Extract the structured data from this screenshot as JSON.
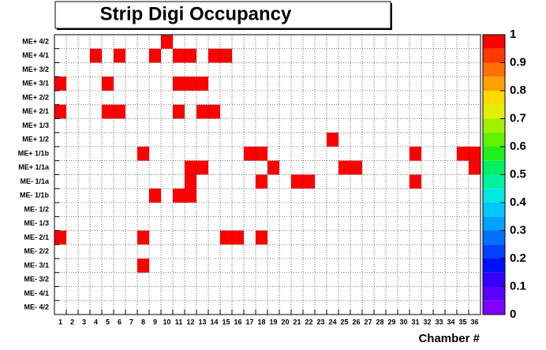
{
  "chart_data": {
    "type": "heatmap",
    "title": "Strip Digi Occupancy",
    "x_label": "Chamber #",
    "x_categories": [
      1,
      2,
      3,
      4,
      5,
      6,
      7,
      8,
      9,
      10,
      11,
      12,
      13,
      14,
      15,
      16,
      17,
      18,
      19,
      20,
      21,
      22,
      23,
      24,
      25,
      26,
      27,
      28,
      29,
      30,
      31,
      32,
      33,
      34,
      35,
      36
    ],
    "y_categories": [
      "ME+ 4/2",
      "ME+ 4/1",
      "ME+ 3/2",
      "ME+ 3/1",
      "ME+ 2/2",
      "ME+ 2/1",
      "ME+ 1/3",
      "ME+ 1/2",
      "ME+ 1/1b",
      "ME+ 1/1a",
      "ME- 1/1a",
      "ME- 1/1b",
      "ME- 1/2",
      "ME- 1/3",
      "ME- 2/1",
      "ME- 2/2",
      "ME- 3/1",
      "ME- 3/2",
      "ME- 4/1",
      "ME- 4/2"
    ],
    "values": [
      [
        0,
        0,
        0,
        0,
        0,
        0,
        0,
        0,
        0,
        1,
        0,
        0,
        0,
        0,
        0,
        0,
        0,
        0,
        0,
        0,
        0,
        0,
        0,
        0,
        0,
        0,
        0,
        0,
        0,
        0,
        0,
        0,
        0,
        0,
        0,
        0
      ],
      [
        0,
        0,
        0,
        1,
        0,
        1,
        0,
        0,
        1,
        0,
        1,
        1,
        0,
        1,
        1,
        0,
        0,
        0,
        0,
        0,
        0,
        0,
        0,
        0,
        0,
        0,
        0,
        0,
        0,
        0,
        0,
        0,
        0,
        0,
        0,
        0
      ],
      [
        0,
        0,
        0,
        0,
        0,
        0,
        0,
        0,
        0,
        0,
        0,
        0,
        0,
        0,
        0,
        0,
        0,
        0,
        0,
        0,
        0,
        0,
        0,
        0,
        0,
        0,
        0,
        0,
        0,
        0,
        0,
        0,
        0,
        0,
        0,
        0
      ],
      [
        1,
        0,
        0,
        0,
        1,
        0,
        0,
        0,
        0,
        0,
        1,
        1,
        1,
        0,
        0,
        0,
        0,
        0,
        0,
        0,
        0,
        0,
        0,
        0,
        0,
        0,
        0,
        0,
        0,
        0,
        0,
        0,
        0,
        0,
        0,
        0
      ],
      [
        0,
        0,
        0,
        0,
        0,
        0,
        0,
        0,
        0,
        0,
        0,
        0,
        0,
        0,
        0,
        0,
        0,
        0,
        0,
        0,
        0,
        0,
        0,
        0,
        0,
        0,
        0,
        0,
        0,
        0,
        0,
        0,
        0,
        0,
        0,
        0
      ],
      [
        1,
        0,
        0,
        0,
        1,
        1,
        0,
        0,
        0,
        0,
        1,
        0,
        1,
        1,
        0,
        0,
        0,
        0,
        0,
        0,
        0,
        0,
        0,
        0,
        0,
        0,
        0,
        0,
        0,
        0,
        0,
        0,
        0,
        0,
        0,
        0
      ],
      [
        0,
        0,
        0,
        0,
        0,
        0,
        0,
        0,
        0,
        0,
        0,
        0,
        0,
        0,
        0,
        0,
        0,
        0,
        0,
        0,
        0,
        0,
        0,
        0,
        0,
        0,
        0,
        0,
        0,
        0,
        0,
        0,
        0,
        0,
        0,
        0
      ],
      [
        0,
        0,
        0,
        0,
        0,
        0,
        0,
        0,
        0,
        0,
        0,
        0,
        0,
        0,
        0,
        0,
        0,
        0,
        0,
        0,
        0,
        0,
        0,
        1,
        0,
        0,
        0,
        0,
        0,
        0,
        0,
        0,
        0,
        0,
        0,
        0
      ],
      [
        0,
        0,
        0,
        0,
        0,
        0,
        0,
        1,
        0,
        0,
        0,
        0,
        0,
        0,
        0,
        0,
        1,
        1,
        0,
        0,
        0,
        0,
        0,
        0,
        0,
        0,
        0,
        0,
        0,
        0,
        1,
        0,
        0,
        0,
        1,
        1
      ],
      [
        0,
        0,
        0,
        0,
        0,
        0,
        0,
        0,
        0,
        0,
        0,
        1,
        1,
        0,
        0,
        0,
        0,
        0,
        1,
        0,
        0,
        0,
        0,
        0,
        1,
        1,
        0,
        0,
        0,
        0,
        0,
        0,
        0,
        0,
        0,
        1
      ],
      [
        0,
        0,
        0,
        0,
        0,
        0,
        0,
        0,
        0,
        0,
        0,
        1,
        0,
        0,
        0,
        0,
        0,
        1,
        0,
        0,
        1,
        1,
        0,
        0,
        0,
        0,
        0,
        0,
        0,
        0,
        1,
        0,
        0,
        0,
        0,
        0
      ],
      [
        0,
        0,
        0,
        0,
        0,
        0,
        0,
        0,
        1,
        0,
        1,
        1,
        0,
        0,
        0,
        0,
        0,
        0,
        0,
        0,
        0,
        0,
        0,
        0,
        0,
        0,
        0,
        0,
        0,
        0,
        0,
        0,
        0,
        0,
        0,
        0
      ],
      [
        0,
        0,
        0,
        0,
        0,
        0,
        0,
        0,
        0,
        0,
        0,
        0,
        0,
        0,
        0,
        0,
        0,
        0,
        0,
        0,
        0,
        0,
        0,
        0,
        0,
        0,
        0,
        0,
        0,
        0,
        0,
        0,
        0,
        0,
        0,
        0
      ],
      [
        0,
        0,
        0,
        0,
        0,
        0,
        0,
        0,
        0,
        0,
        0,
        0,
        0,
        0,
        0,
        0,
        0,
        0,
        0,
        0,
        0,
        0,
        0,
        0,
        0,
        0,
        0,
        0,
        0,
        0,
        0,
        0,
        0,
        0,
        0,
        0
      ],
      [
        1,
        0,
        0,
        0,
        0,
        0,
        0,
        1,
        0,
        0,
        0,
        0,
        0,
        0,
        1,
        1,
        0,
        1,
        0,
        0,
        0,
        0,
        0,
        0,
        0,
        0,
        0,
        0,
        0,
        0,
        0,
        0,
        0,
        0,
        0,
        0
      ],
      [
        0,
        0,
        0,
        0,
        0,
        0,
        0,
        0,
        0,
        0,
        0,
        0,
        0,
        0,
        0,
        0,
        0,
        0,
        0,
        0,
        0,
        0,
        0,
        0,
        0,
        0,
        0,
        0,
        0,
        0,
        0,
        0,
        0,
        0,
        0,
        0
      ],
      [
        0,
        0,
        0,
        0,
        0,
        0,
        0,
        1,
        0,
        0,
        0,
        0,
        0,
        0,
        0,
        0,
        0,
        0,
        0,
        0,
        0,
        0,
        0,
        0,
        0,
        0,
        0,
        0,
        0,
        0,
        0,
        0,
        0,
        0,
        0,
        0
      ],
      [
        0,
        0,
        0,
        0,
        0,
        0,
        0,
        0,
        0,
        0,
        0,
        0,
        0,
        0,
        0,
        0,
        0,
        0,
        0,
        0,
        0,
        0,
        0,
        0,
        0,
        0,
        0,
        0,
        0,
        0,
        0,
        0,
        0,
        0,
        0,
        0
      ],
      [
        0,
        0,
        0,
        0,
        0,
        0,
        0,
        0,
        0,
        0,
        0,
        0,
        0,
        0,
        0,
        0,
        0,
        0,
        0,
        0,
        0,
        0,
        0,
        0,
        0,
        0,
        0,
        0,
        0,
        0,
        0,
        0,
        0,
        0,
        0,
        0
      ],
      [
        0,
        0,
        0,
        0,
        0,
        0,
        0,
        0,
        0,
        0,
        0,
        0,
        0,
        0,
        0,
        0,
        0,
        0,
        0,
        0,
        0,
        0,
        0,
        0,
        0,
        0,
        0,
        0,
        0,
        0,
        0,
        0,
        0,
        0,
        0,
        0
      ]
    ],
    "zlim": [
      0,
      1
    ],
    "zticks": [
      0,
      0.1,
      0.2,
      0.3,
      0.4,
      0.5,
      0.6,
      0.7,
      0.8,
      0.9,
      1
    ],
    "palette": [
      "#7f00ff",
      "#5a00ff",
      "#3300ff",
      "#0010ff",
      "#0040ff",
      "#0070ff",
      "#00a0ff",
      "#00c8ff",
      "#00e8e0",
      "#00f0a0",
      "#00f060",
      "#20f020",
      "#60f000",
      "#a0f000",
      "#e0f000",
      "#ffd800",
      "#ffa000",
      "#ff7000",
      "#ff3800",
      "#ff0000"
    ],
    "grid": true
  }
}
